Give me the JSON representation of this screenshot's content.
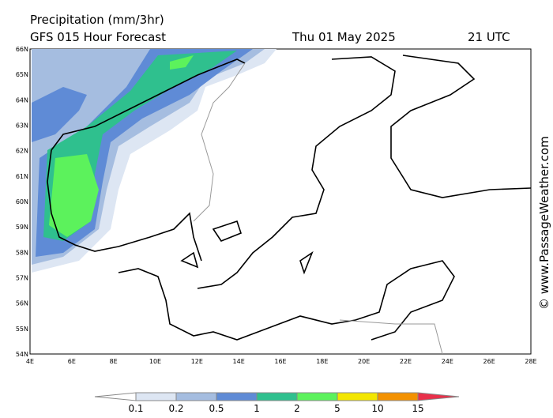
{
  "header": {
    "title": "Precipitation (mm/3hr)",
    "model": "GFS 015 Hour Forecast",
    "date": "Thu 01 May 2025",
    "time": "21 UTC"
  },
  "map": {
    "lon_labels": [
      "4E",
      "6E",
      "8E",
      "10E",
      "12E",
      "14E",
      "16E",
      "18E",
      "20E",
      "22E",
      "24E",
      "26E",
      "28E"
    ],
    "lat_labels": [
      "66N",
      "65N",
      "64N",
      "63N",
      "62N",
      "61N",
      "60N",
      "59N",
      "58N",
      "57N",
      "56N",
      "55N",
      "54N"
    ]
  },
  "legend": {
    "labels": [
      0.1,
      0.2,
      0.5,
      1,
      2,
      5,
      10,
      15
    ],
    "colors": [
      "#ffffff",
      "#dde6f3",
      "#a5bde0",
      "#5f8bd6",
      "#2fc08e",
      "#5cf25c",
      "#f3e600",
      "#f39100",
      "#e8304a"
    ]
  },
  "watermark": "© www.PassageWeather.com"
}
